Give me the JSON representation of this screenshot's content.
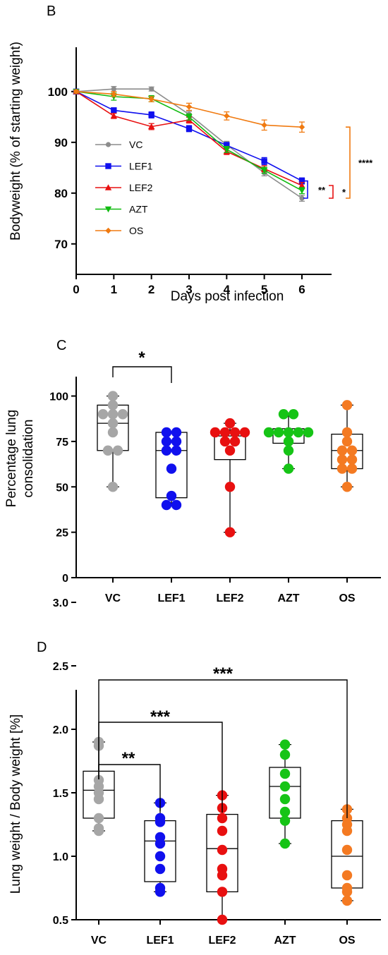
{
  "colors": {
    "VC": "#8c8c8c",
    "LEF1": "#1010ee",
    "LEF2": "#e81010",
    "AZT": "#10bb10",
    "OS": "#f07a10",
    "VC_box": "#a6a6a6",
    "OS_box": "#f47a22",
    "AZT_box": "#16c416"
  },
  "chart_data": [
    {
      "panel": "B",
      "type": "line",
      "xlabel": "Days post infection",
      "ylabel": "Bodyweight (% of starting weight)",
      "x": [
        0,
        1,
        2,
        3,
        4,
        5,
        6
      ],
      "xticks": [
        "0",
        "1",
        "2",
        "3",
        "4",
        "5",
        "6"
      ],
      "ylim": [
        64,
        109
      ],
      "yticks": [
        "70",
        "80",
        "90",
        "100"
      ],
      "legend_position": "inside-left",
      "series": [
        {
          "name": "VC",
          "marker": "circle",
          "values": [
            100,
            100.5,
            100.5,
            95.5,
            89.5,
            84,
            79
          ],
          "err": [
            0.4,
            0.5,
            0.4,
            0.6,
            0.7,
            0.6,
            0.6
          ]
        },
        {
          "name": "LEF1",
          "marker": "square",
          "values": [
            100,
            96.3,
            95.4,
            92.7,
            89.4,
            86.3,
            82.4
          ],
          "err": [
            0.3,
            0.5,
            0.6,
            0.6,
            0.6,
            0.7,
            0.6
          ]
        },
        {
          "name": "LEF2",
          "marker": "triangle-up",
          "values": [
            100,
            95.2,
            93.1,
            94.4,
            88.2,
            84.8,
            81.5
          ],
          "err": [
            0.3,
            0.5,
            0.6,
            0.6,
            0.6,
            0.6,
            0.6
          ]
        },
        {
          "name": "AZT",
          "marker": "triangle-down",
          "values": [
            100,
            99,
            98.6,
            95,
            88.6,
            84.5,
            80.5
          ],
          "err": [
            0.3,
            0.7,
            0.6,
            0.6,
            0.6,
            0.6,
            0.6
          ]
        },
        {
          "name": "OS",
          "marker": "diamond",
          "values": [
            100,
            99.5,
            98.5,
            97,
            95.2,
            93.4,
            93
          ],
          "err": [
            0.3,
            0.5,
            0.5,
            0.7,
            0.8,
            1.0,
            1.0
          ]
        }
      ],
      "significance": [
        {
          "label": "**",
          "from": 79,
          "to": 82.4,
          "color": "#1010ee"
        },
        {
          "label": "*",
          "from": 79,
          "to": 81.5,
          "color": "#e81010"
        },
        {
          "label": "****",
          "from": 79,
          "to": 93,
          "color": "#f07a10"
        }
      ]
    },
    {
      "panel": "C",
      "type": "box",
      "ylabel": "Percentage lung consolidation",
      "categories": [
        "VC",
        "LEF1",
        "LEF2",
        "AZT",
        "OS"
      ],
      "ylim": [
        0,
        110
      ],
      "yticks": [
        "0",
        "25",
        "50",
        "75",
        "100"
      ],
      "groups": [
        {
          "name": "VC",
          "min": 50,
          "q1": 70,
          "median": 85,
          "q3": 95,
          "max": 100,
          "points": [
            100,
            95,
            90,
            90,
            90,
            85,
            80,
            70,
            70,
            50
          ]
        },
        {
          "name": "LEF1",
          "min": 40,
          "q1": 44,
          "median": 70,
          "q3": 80,
          "max": 80,
          "points": [
            80,
            80,
            75,
            75,
            70,
            70,
            60,
            45,
            40,
            40
          ]
        },
        {
          "name": "LEF2",
          "min": 25,
          "q1": 65,
          "median": 78,
          "q3": 80,
          "max": 85,
          "points": [
            85,
            80,
            80,
            80,
            80,
            75,
            75,
            70,
            50,
            25
          ]
        },
        {
          "name": "AZT",
          "min": 60,
          "q1": 74,
          "median": 80,
          "q3": 82,
          "max": 90,
          "points": [
            90,
            90,
            80,
            80,
            80,
            80,
            80,
            75,
            70,
            60
          ]
        },
        {
          "name": "OS",
          "min": 50,
          "q1": 60,
          "median": 70,
          "q3": 79,
          "max": 95,
          "points": [
            95,
            80,
            75,
            70,
            70,
            65,
            65,
            60,
            60,
            50
          ]
        }
      ],
      "significance": [
        {
          "label": "*",
          "from": "VC",
          "to": "LEF1"
        }
      ]
    },
    {
      "panel": "D",
      "type": "box",
      "ylabel": "Lung weight / Body weight [%]",
      "categories": [
        "VC",
        "LEF1",
        "LEF2",
        "AZT",
        "OS"
      ],
      "ylim": [
        0.5,
        3.0
      ],
      "yticks": [
        "0.5",
        "1.0",
        "1.5",
        "2.0",
        "2.5",
        "3.0"
      ],
      "groups": [
        {
          "name": "VC",
          "min": 1.2,
          "q1": 1.3,
          "median": 1.52,
          "q3": 1.67,
          "max": 1.9,
          "points": [
            1.9,
            1.87,
            1.6,
            1.55,
            1.5,
            1.45,
            1.3,
            1.22,
            1.2
          ]
        },
        {
          "name": "LEF1",
          "min": 0.72,
          "q1": 0.8,
          "median": 1.12,
          "q3": 1.28,
          "max": 1.42,
          "points": [
            1.42,
            1.3,
            1.27,
            1.15,
            1.1,
            1.0,
            0.9,
            0.75,
            0.72
          ]
        },
        {
          "name": "LEF2",
          "min": 0.5,
          "q1": 0.72,
          "median": 1.06,
          "q3": 1.33,
          "max": 1.48,
          "points": [
            1.48,
            1.38,
            1.3,
            1.2,
            1.05,
            0.9,
            0.85,
            0.72,
            0.5
          ]
        },
        {
          "name": "AZT",
          "min": 1.1,
          "q1": 1.3,
          "median": 1.55,
          "q3": 1.7,
          "max": 1.88,
          "points": [
            1.88,
            1.8,
            1.65,
            1.55,
            1.45,
            1.35,
            1.28,
            1.1
          ]
        },
        {
          "name": "OS",
          "min": 0.65,
          "q1": 0.75,
          "median": 1.0,
          "q3": 1.28,
          "max": 1.37,
          "points": [
            1.37,
            1.3,
            1.25,
            1.2,
            1.05,
            0.85,
            0.75,
            0.72,
            0.65
          ]
        }
      ],
      "significance": [
        {
          "label": "**",
          "from": "VC",
          "to": "LEF1"
        },
        {
          "label": "***",
          "from": "VC",
          "to": "LEF2"
        },
        {
          "label": "***",
          "from": "VC",
          "to": "OS"
        }
      ]
    }
  ],
  "panelB": {
    "letter": "B",
    "xlabel": "Days post infection",
    "ylabel": "Bodyweight (% of starting weight)"
  },
  "panelC": {
    "letter": "C",
    "ylabel_line1": "Percentage lung",
    "ylabel_line2": "consolidation"
  },
  "panelD": {
    "letter": "D",
    "ylabel": "Lung weight / Body weight [%]"
  }
}
